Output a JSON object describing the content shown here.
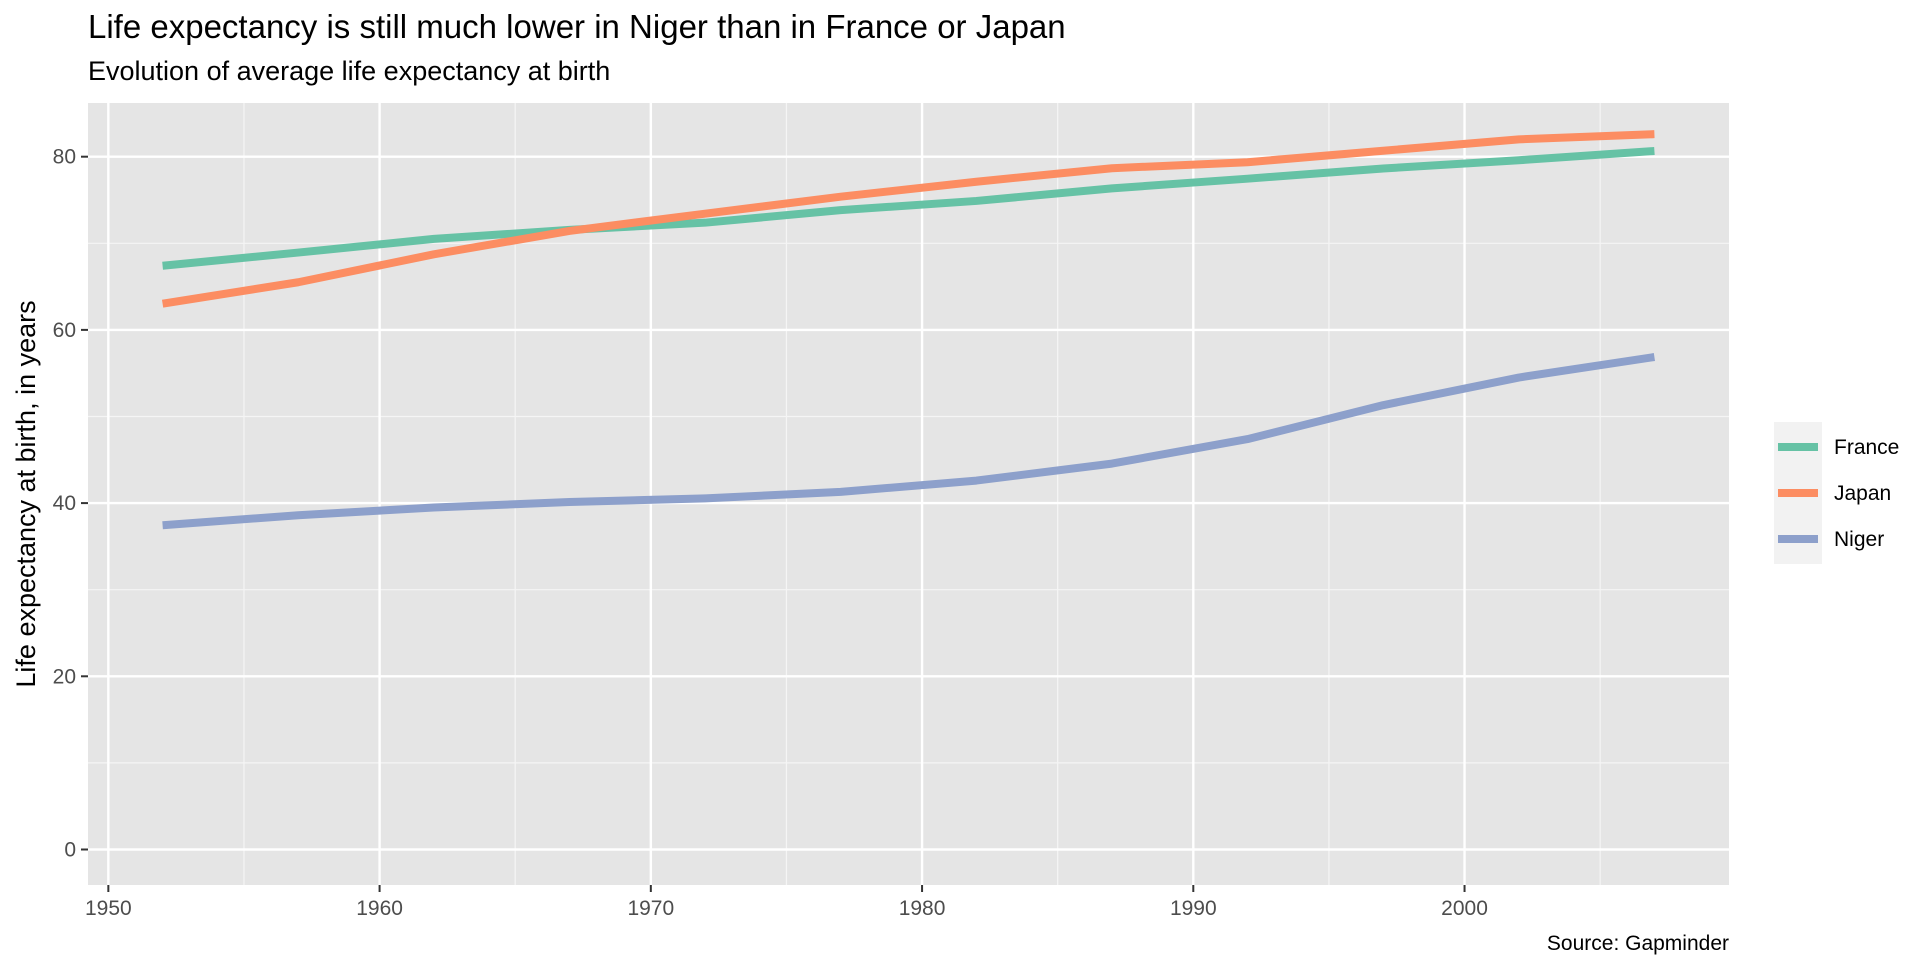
{
  "chart_data": {
    "type": "line",
    "title": "Life expectancy is still much lower in Niger than in France or Japan",
    "subtitle": "Evolution of average life expectancy at birth",
    "xlabel": "",
    "ylabel": "Life expectancy at birth, in years",
    "caption": "Source: Gapminder",
    "x": [
      1952,
      1957,
      1962,
      1967,
      1972,
      1977,
      1982,
      1987,
      1992,
      1997,
      2002,
      2007
    ],
    "xlim": [
      1949.25,
      2009.75
    ],
    "ylim": [
      -4.1,
      86.2
    ],
    "xticks": [
      1950,
      1960,
      1970,
      1980,
      1990,
      2000
    ],
    "xtick_labels": [
      "1950",
      "1960",
      "1970",
      "1980",
      "1990",
      "2000"
    ],
    "xticks_minor": [
      1955,
      1965,
      1975,
      1985,
      1995,
      2005
    ],
    "yticks": [
      0,
      20,
      40,
      60,
      80
    ],
    "ytick_labels": [
      "0",
      "20",
      "40",
      "60",
      "80"
    ],
    "yticks_minor": [
      10,
      30,
      50,
      70
    ],
    "grid": true,
    "legend_position": "right",
    "background": "#e5e5e5",
    "series": [
      {
        "name": "France",
        "color": "#66c2a5",
        "values": [
          67.41,
          68.93,
          70.51,
          71.55,
          72.38,
          73.83,
          74.89,
          76.34,
          77.46,
          78.64,
          79.59,
          80.66
        ]
      },
      {
        "name": "Japan",
        "color": "#fc8d62",
        "values": [
          63.03,
          65.5,
          68.73,
          71.43,
          73.42,
          75.38,
          77.11,
          78.67,
          79.36,
          80.69,
          82.0,
          82.6
        ]
      },
      {
        "name": "Niger",
        "color": "#8da0cb",
        "values": [
          37.44,
          38.6,
          39.49,
          40.12,
          40.55,
          41.29,
          42.6,
          44.56,
          47.39,
          51.31,
          54.5,
          56.87
        ]
      }
    ]
  }
}
